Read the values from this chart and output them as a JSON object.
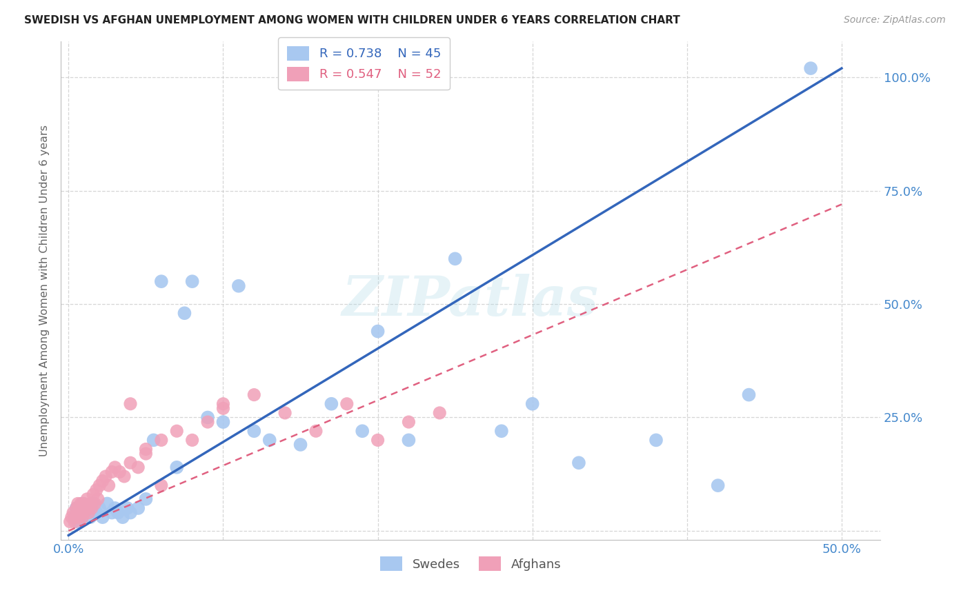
{
  "title": "SWEDISH VS AFGHAN UNEMPLOYMENT AMONG WOMEN WITH CHILDREN UNDER 6 YEARS CORRELATION CHART",
  "source": "Source: ZipAtlas.com",
  "ylabel": "Unemployment Among Women with Children Under 6 years",
  "legend_blue_r": "R = 0.738",
  "legend_blue_n": "N = 45",
  "legend_pink_r": "R = 0.547",
  "legend_pink_n": "N = 52",
  "legend_swedes": "Swedes",
  "legend_afghans": "Afghans",
  "blue_color": "#a8c8f0",
  "blue_line_color": "#3366bb",
  "pink_color": "#f0a0b8",
  "pink_line_color": "#e06080",
  "watermark": "ZIPatlas",
  "blue_line_x0": 0.0,
  "blue_line_y0": -0.01,
  "blue_line_x1": 0.5,
  "blue_line_y1": 1.02,
  "pink_line_x0": 0.0,
  "pink_line_y0": 0.0,
  "pink_line_x1": 0.5,
  "pink_line_y1": 0.72,
  "xlim_min": -0.005,
  "xlim_max": 0.525,
  "ylim_min": -0.02,
  "ylim_max": 1.08,
  "x_ticks": [
    0.0,
    0.1,
    0.2,
    0.3,
    0.4,
    0.5
  ],
  "x_tick_labels": [
    "0.0%",
    "",
    "",
    "",
    "",
    "50.0%"
  ],
  "y_ticks": [
    0.0,
    0.25,
    0.5,
    0.75,
    1.0
  ],
  "y_tick_labels_right": [
    "",
    "25.0%",
    "50.0%",
    "75.0%",
    "100.0%"
  ],
  "blue_scatter_x": [
    0.004,
    0.005,
    0.006,
    0.007,
    0.008,
    0.009,
    0.01,
    0.012,
    0.014,
    0.016,
    0.018,
    0.02,
    0.022,
    0.025,
    0.028,
    0.03,
    0.032,
    0.035,
    0.038,
    0.04,
    0.045,
    0.05,
    0.055,
    0.06,
    0.07,
    0.075,
    0.08,
    0.09,
    0.1,
    0.11,
    0.12,
    0.13,
    0.15,
    0.17,
    0.19,
    0.2,
    0.22,
    0.25,
    0.28,
    0.3,
    0.33,
    0.38,
    0.42,
    0.44,
    0.48
  ],
  "blue_scatter_y": [
    0.03,
    0.05,
    0.02,
    0.04,
    0.03,
    0.06,
    0.04,
    0.05,
    0.03,
    0.06,
    0.04,
    0.05,
    0.03,
    0.06,
    0.04,
    0.05,
    0.04,
    0.03,
    0.05,
    0.04,
    0.05,
    0.07,
    0.2,
    0.55,
    0.14,
    0.48,
    0.55,
    0.25,
    0.24,
    0.54,
    0.22,
    0.2,
    0.19,
    0.28,
    0.22,
    0.44,
    0.2,
    0.6,
    0.22,
    0.28,
    0.15,
    0.2,
    0.1,
    0.3,
    1.02
  ],
  "pink_scatter_x": [
    0.001,
    0.002,
    0.003,
    0.004,
    0.005,
    0.005,
    0.006,
    0.006,
    0.007,
    0.007,
    0.008,
    0.008,
    0.009,
    0.009,
    0.01,
    0.01,
    0.011,
    0.012,
    0.013,
    0.014,
    0.015,
    0.016,
    0.017,
    0.018,
    0.019,
    0.02,
    0.022,
    0.024,
    0.026,
    0.028,
    0.03,
    0.033,
    0.036,
    0.04,
    0.045,
    0.05,
    0.06,
    0.07,
    0.08,
    0.09,
    0.1,
    0.12,
    0.14,
    0.16,
    0.18,
    0.2,
    0.22,
    0.24,
    0.1,
    0.06,
    0.05,
    0.04
  ],
  "pink_scatter_y": [
    0.02,
    0.03,
    0.04,
    0.02,
    0.03,
    0.05,
    0.04,
    0.06,
    0.03,
    0.05,
    0.04,
    0.06,
    0.03,
    0.05,
    0.04,
    0.06,
    0.05,
    0.07,
    0.04,
    0.06,
    0.05,
    0.08,
    0.06,
    0.09,
    0.07,
    0.1,
    0.11,
    0.12,
    0.1,
    0.13,
    0.14,
    0.13,
    0.12,
    0.15,
    0.14,
    0.17,
    0.2,
    0.22,
    0.2,
    0.24,
    0.28,
    0.3,
    0.26,
    0.22,
    0.28,
    0.2,
    0.24,
    0.26,
    0.27,
    0.1,
    0.18,
    0.28
  ]
}
